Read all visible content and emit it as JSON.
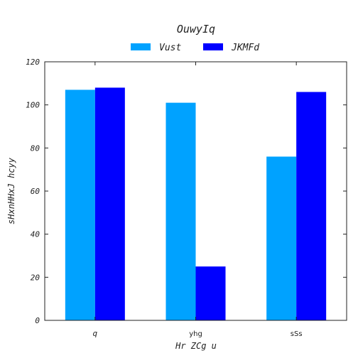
{
  "chart_data": {
    "type": "bar",
    "title": "OuwyIq",
    "xlabel": "Hr ZCg u",
    "ylabel": "sHxnHHxJ hcyy",
    "categories": [
      "q",
      "yhg",
      "sSs"
    ],
    "series": [
      {
        "name": "Vust",
        "color": "#00a2ff",
        "values": [
          107,
          101,
          76
        ]
      },
      {
        "name": "JKMFd",
        "color": "#0000ff",
        "values": [
          108,
          25,
          106
        ]
      }
    ],
    "ylim": [
      0,
      120
    ],
    "yticks": [
      0,
      20,
      40,
      60,
      80,
      100,
      120
    ],
    "grid": false,
    "legend_position": "top-center"
  }
}
